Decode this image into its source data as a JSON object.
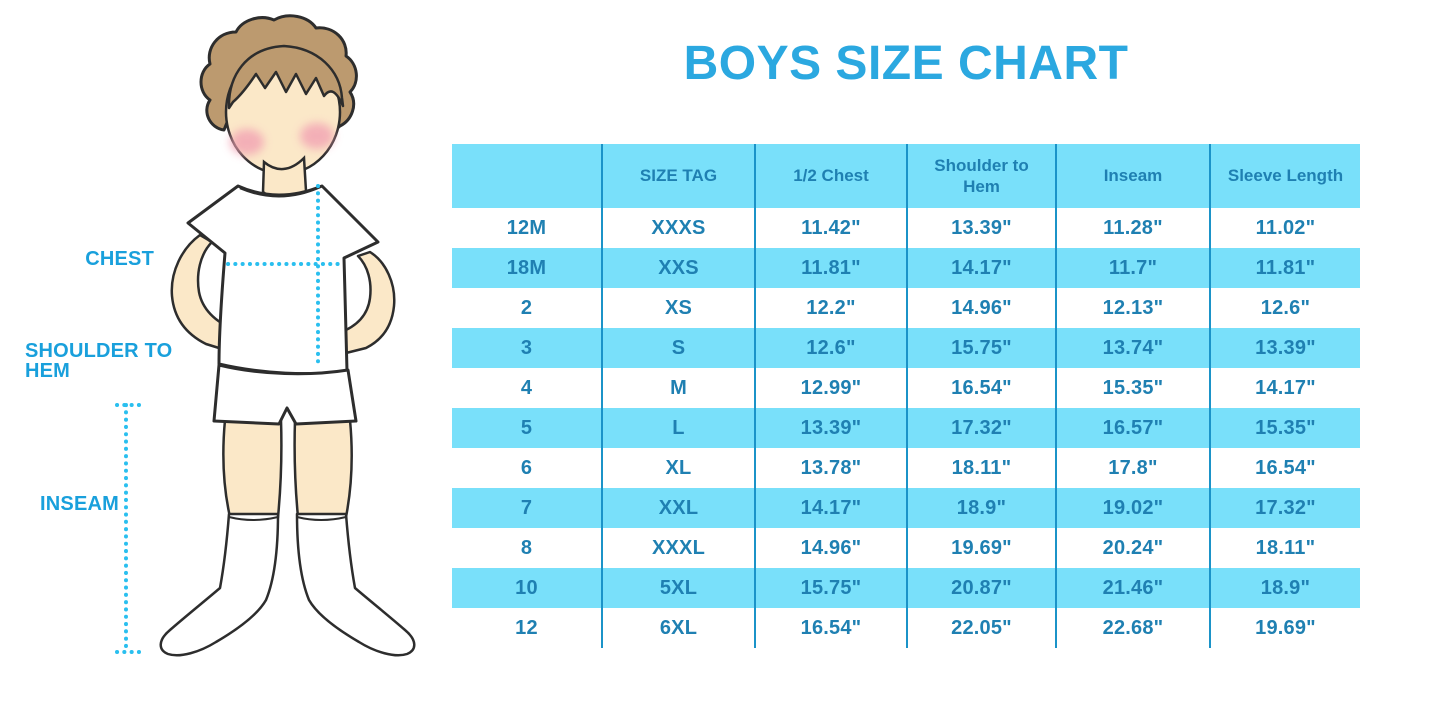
{
  "title": "BOYS SIZE CHART",
  "colors": {
    "title_blue": "#2BA8E0",
    "label_blue": "#19A0DC",
    "dotted_line": "#2ABFEF",
    "row_blue": "#79E0FA",
    "cell_text": "#1F80B2",
    "divider": "#1B93C8",
    "hair": "#BC9A6F",
    "skin": "#FBE8C8",
    "cheek": "#F2A2B3",
    "outline": "#2D2D2D"
  },
  "figure": {
    "labels": {
      "chest": "CHEST",
      "shoulder_to_hem": "SHOULDER TO HEM",
      "inseam": "INSEAM"
    }
  },
  "chart_data": {
    "type": "table",
    "title": "BOYS SIZE CHART",
    "columns": [
      "",
      "SIZE TAG",
      "1/2 Chest",
      "Shoulder to Hem",
      "Inseam",
      "Sleeve Length"
    ],
    "rows": [
      [
        "12M",
        "XXXS",
        "11.42\"",
        "13.39\"",
        "11.28\"",
        "11.02\""
      ],
      [
        "18M",
        "XXS",
        "11.81\"",
        "14.17\"",
        "11.7\"",
        "11.81\""
      ],
      [
        "2",
        "XS",
        "12.2\"",
        "14.96\"",
        "12.13\"",
        "12.6\""
      ],
      [
        "3",
        "S",
        "12.6\"",
        "15.75\"",
        "13.74\"",
        "13.39\""
      ],
      [
        "4",
        "M",
        "12.99\"",
        "16.54\"",
        "15.35\"",
        "14.17\""
      ],
      [
        "5",
        "L",
        "13.39\"",
        "17.32\"",
        "16.57\"",
        "15.35\""
      ],
      [
        "6",
        "XL",
        "13.78\"",
        "18.11\"",
        "17.8\"",
        "16.54\""
      ],
      [
        "7",
        "XXL",
        "14.17\"",
        "18.9\"",
        "19.02\"",
        "17.32\""
      ],
      [
        "8",
        "XXXL",
        "14.96\"",
        "19.69\"",
        "20.24\"",
        "18.11\""
      ],
      [
        "10",
        "5XL",
        "15.75\"",
        "20.87\"",
        "21.46\"",
        "18.9\""
      ],
      [
        "12",
        "6XL",
        "16.54\"",
        "22.05\"",
        "22.68\"",
        "19.69\""
      ]
    ]
  }
}
